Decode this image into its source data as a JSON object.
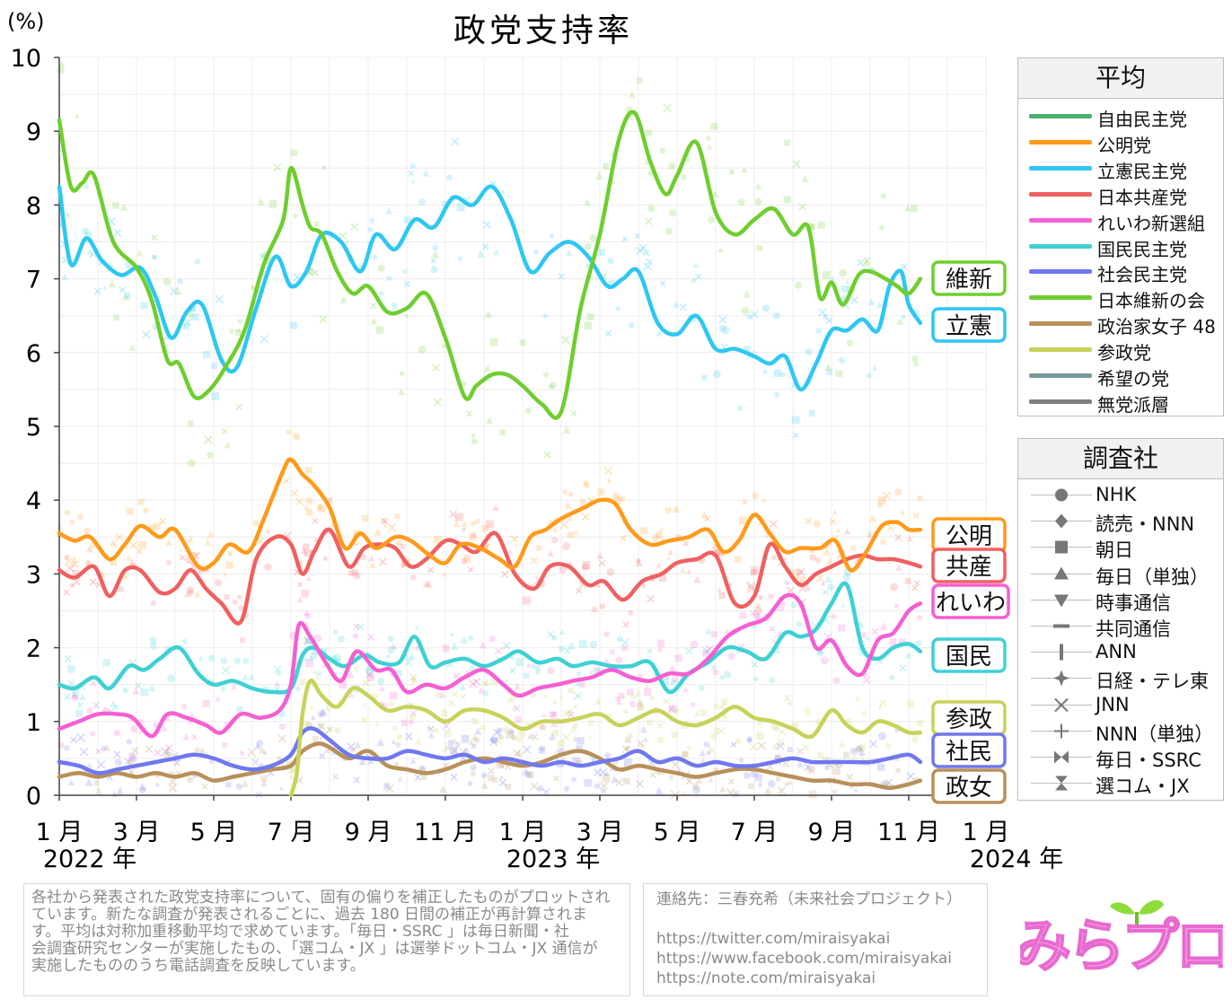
{
  "title": "政党支持率",
  "y_unit": "(%)",
  "colors": {
    "ldp": "#4caf6d",
    "komeito": "#ff9a1a",
    "cdp": "#2ec7f2",
    "jcp": "#f06060",
    "reiwa": "#f55fd2",
    "dpfp": "#3fd0d4",
    "sdp": "#6f78ef",
    "ishin": "#6fce2f",
    "seijika": "#b8905a",
    "sanseito": "#c8d25a",
    "kibou": "#7a9a9a",
    "mutouha": "#808080"
  },
  "chart_data": {
    "type": "line",
    "title": "政党支持率",
    "ylabel": "(%)",
    "ylim": [
      0,
      10
    ],
    "yticks": [
      "0",
      "1",
      "2",
      "3",
      "4",
      "5",
      "6",
      "7",
      "8",
      "9",
      "10"
    ],
    "xlim": [
      0,
      24
    ],
    "x_unit": "months since Jan 2022",
    "xticks": [
      {
        "x": 0,
        "label": "1 月"
      },
      {
        "x": 2,
        "label": "3 月"
      },
      {
        "x": 4,
        "label": "5 月"
      },
      {
        "x": 6,
        "label": "7 月"
      },
      {
        "x": 8,
        "label": "9 月"
      },
      {
        "x": 10,
        "label": "11 月"
      },
      {
        "x": 12,
        "label": "1 月"
      },
      {
        "x": 14,
        "label": "3 月"
      },
      {
        "x": 16,
        "label": "5 月"
      },
      {
        "x": 18,
        "label": "7 月"
      },
      {
        "x": 20,
        "label": "9 月"
      },
      {
        "x": 22,
        "label": "11 月"
      },
      {
        "x": 24,
        "label": "1 月"
      }
    ],
    "year_labels": [
      {
        "x": 0,
        "label": "2022 年"
      },
      {
        "x": 12,
        "label": "2023 年"
      },
      {
        "x": 24,
        "label": "2024 年"
      }
    ],
    "grid": true,
    "series": [
      {
        "name": "日本維新の会",
        "label": "維新",
        "color": "#6fce2f",
        "x": [
          0,
          0.3,
          0.6,
          0.9,
          1.4,
          2,
          2.4,
          2.8,
          3.1,
          3.5,
          3.9,
          4.3,
          4.8,
          5.3,
          5.8,
          6,
          6.3,
          6.5,
          6.8,
          7.2,
          7.6,
          8,
          8.5,
          9,
          9.5,
          10,
          10.5,
          10.8,
          11.2,
          11.6,
          12,
          12.5,
          13,
          13.5,
          14,
          14.5,
          14.9,
          15.3,
          15.7,
          16,
          16.5,
          17,
          17.5,
          18,
          18.5,
          19,
          19.4,
          19.7,
          20,
          20.3,
          20.7,
          21,
          21.4,
          21.7,
          22,
          22.3
        ],
        "y": [
          9.15,
          8.25,
          8.3,
          8.4,
          7.5,
          7.15,
          6.7,
          5.9,
          5.85,
          5.4,
          5.5,
          5.8,
          6.3,
          7.2,
          7.8,
          8.5,
          8.0,
          7.7,
          7.6,
          7.1,
          6.8,
          6.9,
          6.55,
          6.6,
          6.8,
          6.2,
          5.4,
          5.55,
          5.7,
          5.7,
          5.55,
          5.3,
          5.2,
          6.6,
          7.6,
          8.9,
          9.25,
          8.6,
          8.15,
          8.4,
          8.85,
          7.9,
          7.6,
          7.8,
          7.95,
          7.6,
          7.7,
          6.75,
          6.95,
          6.65,
          7.05,
          7.1,
          7.0,
          6.9,
          6.8,
          7.0
        ]
      },
      {
        "name": "立憲民主党",
        "label": "立憲",
        "color": "#2ec7f2",
        "x": [
          0,
          0.3,
          0.7,
          1.1,
          1.6,
          2.1,
          2.5,
          2.9,
          3.3,
          3.7,
          4.2,
          4.6,
          5.1,
          5.6,
          6,
          6.4,
          6.8,
          7.3,
          7.8,
          8.2,
          8.7,
          9.2,
          9.7,
          10.2,
          10.7,
          11.2,
          11.7,
          12.2,
          12.7,
          13.2,
          13.7,
          14.2,
          14.6,
          15,
          15.5,
          16,
          16.5,
          17,
          17.5,
          18,
          18.4,
          18.8,
          19.2,
          19.6,
          20,
          20.4,
          20.8,
          21.2,
          21.5,
          21.8,
          22,
          22.3
        ],
        "y": [
          8.25,
          7.2,
          7.55,
          7.25,
          7.05,
          7.15,
          6.75,
          6.2,
          6.55,
          6.65,
          5.9,
          5.8,
          6.6,
          7.3,
          6.9,
          7.1,
          7.6,
          7.5,
          7.1,
          7.6,
          7.4,
          7.8,
          7.7,
          8.1,
          8.0,
          8.25,
          7.8,
          7.1,
          7.35,
          7.5,
          7.3,
          6.9,
          7.0,
          7.1,
          6.4,
          6.25,
          6.5,
          6.05,
          6.05,
          5.95,
          5.85,
          5.95,
          5.5,
          5.85,
          6.3,
          6.3,
          6.45,
          6.3,
          6.9,
          7.1,
          6.65,
          6.4
        ]
      },
      {
        "name": "公明党",
        "label": "公明",
        "color": "#ff9a1a",
        "x": [
          0,
          0.4,
          0.8,
          1.3,
          1.7,
          2.1,
          2.6,
          3,
          3.6,
          4,
          4.4,
          4.9,
          5.3,
          5.8,
          6,
          6.3,
          6.6,
          7,
          7.4,
          7.8,
          8.2,
          8.7,
          9.1,
          9.6,
          10,
          10.4,
          10.9,
          11.4,
          11.8,
          12.2,
          12.6,
          13,
          13.6,
          14,
          14.4,
          14.8,
          15.3,
          15.8,
          16.3,
          16.8,
          17.2,
          17.6,
          18,
          18.4,
          18.8,
          19.2,
          19.7,
          20.1,
          20.5,
          20.9,
          21.3,
          21.7,
          22,
          22.3
        ],
        "y": [
          3.55,
          3.45,
          3.5,
          3.2,
          3.4,
          3.65,
          3.5,
          3.6,
          3.1,
          3.15,
          3.4,
          3.3,
          3.75,
          4.4,
          4.55,
          4.35,
          4.2,
          3.9,
          3.35,
          3.55,
          3.35,
          3.5,
          3.45,
          3.25,
          3.15,
          3.4,
          3.35,
          3.2,
          3.1,
          3.5,
          3.6,
          3.75,
          3.9,
          4.0,
          3.95,
          3.6,
          3.4,
          3.45,
          3.5,
          3.6,
          3.3,
          3.45,
          3.8,
          3.55,
          3.3,
          3.35,
          3.35,
          3.45,
          3.05,
          3.3,
          3.65,
          3.7,
          3.6,
          3.6
        ]
      },
      {
        "name": "日本共産党",
        "label": "共産",
        "color": "#f06060",
        "x": [
          0,
          0.4,
          0.9,
          1.3,
          1.7,
          2.1,
          2.6,
          3,
          3.4,
          3.8,
          4.2,
          4.7,
          5.1,
          5.6,
          6,
          6.3,
          6.6,
          7,
          7.5,
          7.9,
          8.3,
          8.7,
          9.1,
          9.5,
          10,
          10.4,
          10.8,
          11.3,
          11.8,
          12.3,
          12.7,
          13.2,
          13.7,
          14.1,
          14.6,
          15.1,
          15.6,
          16,
          16.5,
          17,
          17.5,
          18,
          18.4,
          18.8,
          19.2,
          19.6,
          20,
          20.4,
          20.8,
          21.2,
          21.6,
          22,
          22.3
        ],
        "y": [
          3.05,
          2.95,
          3.1,
          2.7,
          3.05,
          3.05,
          2.75,
          2.8,
          3.05,
          2.8,
          2.6,
          2.35,
          3.2,
          3.5,
          3.4,
          3.0,
          3.3,
          3.6,
          3.1,
          3.35,
          3.4,
          3.35,
          3.1,
          3.2,
          3.45,
          3.4,
          3.3,
          3.55,
          3.0,
          2.8,
          3.1,
          3.1,
          2.85,
          2.9,
          2.65,
          2.9,
          3.0,
          3.15,
          3.2,
          3.25,
          2.6,
          2.7,
          3.4,
          3.1,
          2.85,
          3.0,
          3.1,
          3.2,
          3.25,
          3.2,
          3.2,
          3.15,
          3.1
        ]
      },
      {
        "name": "れいわ新選組",
        "label": "れいわ",
        "color": "#f55fd2",
        "x": [
          0,
          0.5,
          1,
          1.5,
          1.9,
          2.4,
          2.8,
          3.3,
          3.8,
          4.2,
          4.7,
          5.2,
          5.7,
          6,
          6.2,
          6.5,
          6.9,
          7.3,
          7.7,
          8.2,
          8.6,
          9,
          9.5,
          10,
          10.5,
          11,
          11.5,
          11.9,
          12.4,
          12.9,
          13.3,
          13.8,
          14.3,
          14.8,
          15.3,
          15.8,
          16.3,
          16.8,
          17.3,
          17.8,
          18.3,
          18.8,
          19.2,
          19.6,
          20,
          20.4,
          20.8,
          21.2,
          21.6,
          22,
          22.3
        ],
        "y": [
          0.9,
          1.0,
          1.1,
          1.1,
          1.05,
          0.8,
          1.1,
          1.05,
          0.95,
          0.85,
          1.1,
          1.05,
          1.15,
          1.5,
          2.3,
          2.15,
          1.8,
          1.55,
          1.95,
          1.7,
          1.7,
          1.4,
          1.5,
          1.45,
          1.6,
          1.7,
          1.5,
          1.35,
          1.45,
          1.5,
          1.55,
          1.6,
          1.7,
          1.6,
          1.55,
          1.65,
          1.65,
          1.85,
          2.15,
          2.3,
          2.4,
          2.7,
          2.6,
          2.0,
          2.1,
          1.75,
          1.65,
          2.1,
          2.2,
          2.5,
          2.6
        ]
      },
      {
        "name": "国民民主党",
        "label": "国民",
        "color": "#3fd0d4",
        "x": [
          0,
          0.4,
          0.9,
          1.3,
          1.8,
          2.2,
          2.6,
          3.1,
          3.6,
          4,
          4.5,
          5,
          5.5,
          6,
          6.3,
          6.6,
          7,
          7.4,
          7.9,
          8.3,
          8.8,
          9.2,
          9.6,
          10,
          10.5,
          11,
          11.5,
          11.9,
          12.4,
          12.9,
          13.3,
          13.8,
          14.3,
          14.8,
          15.3,
          15.8,
          16.3,
          16.8,
          17.3,
          17.8,
          18.3,
          18.8,
          19.2,
          19.6,
          20,
          20.4,
          20.8,
          21.2,
          21.6,
          22,
          22.3
        ],
        "y": [
          1.5,
          1.45,
          1.6,
          1.45,
          1.75,
          1.7,
          1.85,
          2.0,
          1.65,
          1.5,
          1.55,
          1.45,
          1.4,
          1.45,
          1.9,
          2.0,
          1.85,
          1.75,
          1.9,
          1.8,
          1.8,
          2.15,
          1.75,
          1.8,
          1.85,
          1.75,
          1.85,
          1.95,
          1.8,
          1.85,
          1.75,
          1.8,
          1.75,
          1.75,
          1.8,
          1.4,
          1.65,
          1.8,
          2.0,
          1.95,
          1.85,
          2.2,
          2.15,
          2.25,
          2.6,
          2.85,
          2.0,
          1.85,
          2.0,
          2.05,
          1.95
        ]
      },
      {
        "name": "参政党",
        "label": "参政",
        "color": "#c8d25a",
        "x": [
          6,
          6.15,
          6.3,
          6.5,
          6.8,
          7.2,
          7.6,
          8,
          8.5,
          9,
          9.5,
          10,
          10.5,
          11,
          11.5,
          12,
          12.5,
          13,
          13.5,
          14,
          14.5,
          15,
          15.5,
          16,
          16.5,
          17,
          17.5,
          18,
          18.5,
          19,
          19.5,
          20,
          20.4,
          20.8,
          21.2,
          21.6,
          22,
          22.3
        ],
        "y": [
          0,
          0.3,
          1.1,
          1.55,
          1.35,
          1.2,
          1.45,
          1.35,
          1.15,
          1.2,
          1.15,
          1.0,
          1.15,
          1.15,
          1.05,
          0.9,
          1.0,
          1.0,
          1.05,
          1.1,
          0.95,
          1.05,
          1.15,
          1.0,
          0.95,
          1.05,
          1.2,
          1.05,
          1.0,
          0.9,
          0.8,
          1.15,
          0.95,
          0.85,
          1.0,
          0.95,
          0.85,
          0.85
        ]
      },
      {
        "name": "社会民主党",
        "label": "社民",
        "color": "#6f78ef",
        "x": [
          0,
          0.5,
          1,
          1.5,
          2,
          2.5,
          3,
          3.5,
          4,
          4.5,
          5,
          5.5,
          6,
          6.3,
          6.6,
          7,
          7.5,
          8,
          8.5,
          9,
          9.5,
          10,
          10.5,
          11,
          11.5,
          12,
          12.5,
          13,
          13.5,
          14,
          14.5,
          15,
          15.5,
          16,
          16.5,
          17,
          17.5,
          18,
          18.5,
          19,
          19.5,
          20,
          20.5,
          21,
          21.5,
          22,
          22.3
        ],
        "y": [
          0.45,
          0.4,
          0.3,
          0.35,
          0.4,
          0.45,
          0.5,
          0.55,
          0.5,
          0.4,
          0.35,
          0.4,
          0.55,
          0.85,
          0.9,
          0.75,
          0.55,
          0.5,
          0.5,
          0.6,
          0.55,
          0.5,
          0.55,
          0.45,
          0.5,
          0.45,
          0.4,
          0.45,
          0.4,
          0.45,
          0.5,
          0.6,
          0.45,
          0.5,
          0.4,
          0.45,
          0.4,
          0.4,
          0.45,
          0.5,
          0.45,
          0.45,
          0.45,
          0.45,
          0.5,
          0.55,
          0.45
        ]
      },
      {
        "name": "政治家女子 48",
        "label": "政女",
        "color": "#b8905a",
        "x": [
          0,
          0.5,
          1,
          1.5,
          2,
          2.5,
          3,
          3.5,
          4,
          4.5,
          5,
          5.5,
          6,
          6.3,
          6.7,
          7,
          7.5,
          8,
          8.5,
          9,
          9.5,
          10,
          10.5,
          11,
          11.5,
          12,
          12.5,
          13,
          13.5,
          14,
          14.5,
          15,
          15.5,
          16,
          16.5,
          17,
          17.5,
          18,
          18.5,
          19,
          19.5,
          20,
          20.5,
          21,
          21.5,
          22,
          22.3
        ],
        "y": [
          0.25,
          0.3,
          0.25,
          0.3,
          0.25,
          0.3,
          0.25,
          0.3,
          0.2,
          0.25,
          0.3,
          0.35,
          0.4,
          0.6,
          0.7,
          0.65,
          0.5,
          0.6,
          0.4,
          0.35,
          0.3,
          0.35,
          0.45,
          0.5,
          0.45,
          0.4,
          0.45,
          0.55,
          0.6,
          0.5,
          0.35,
          0.4,
          0.35,
          0.3,
          0.25,
          0.3,
          0.35,
          0.35,
          0.3,
          0.25,
          0.2,
          0.2,
          0.15,
          0.15,
          0.1,
          0.15,
          0.2
        ]
      }
    ],
    "legend_avg": {
      "title": "平均",
      "entries": [
        {
          "label": "自由民主党",
          "color": "#4caf6d"
        },
        {
          "label": "公明党",
          "color": "#ff9a1a"
        },
        {
          "label": "立憲民主党",
          "color": "#2ec7f2"
        },
        {
          "label": "日本共産党",
          "color": "#f06060"
        },
        {
          "label": "れいわ新選組",
          "color": "#f55fd2"
        },
        {
          "label": "国民民主党",
          "color": "#3fd0d4"
        },
        {
          "label": "社会民主党",
          "color": "#6f78ef"
        },
        {
          "label": "日本維新の会",
          "color": "#6fce2f"
        },
        {
          "label": "政治家女子 48",
          "color": "#b8905a"
        },
        {
          "label": "参政党",
          "color": "#c8d25a"
        },
        {
          "label": "希望の党",
          "color": "#7a9a9a"
        },
        {
          "label": "無党派層",
          "color": "#808080"
        }
      ]
    },
    "legend_pollster": {
      "title": "調査社",
      "entries": [
        {
          "label": "NHK",
          "symbol": "circle"
        },
        {
          "label": "読売・NNN",
          "symbol": "diamond"
        },
        {
          "label": "朝日",
          "symbol": "square"
        },
        {
          "label": "毎日（単独）",
          "symbol": "triangle-up"
        },
        {
          "label": "時事通信",
          "symbol": "triangle-down"
        },
        {
          "label": "共同通信",
          "symbol": "dash"
        },
        {
          "label": "ANN",
          "symbol": "bar"
        },
        {
          "label": "日経・テレ東",
          "symbol": "star4"
        },
        {
          "label": "JNN",
          "symbol": "x"
        },
        {
          "label": "NNN（単独）",
          "symbol": "plus"
        },
        {
          "label": "毎日・SSRC",
          "symbol": "bowtie"
        },
        {
          "label": "選コム・JX",
          "symbol": "hourglass"
        }
      ]
    }
  },
  "notes": {
    "method": [
      "各社から発表された政党支持率について、固有の偏りを補正したものがプロットされ",
      "ています。新たな調査が発表されるごとに、過去 180 日間の補正が再計算されま",
      "す。平均は対称加重移動平均で求めています。「毎日・SSRC 」は毎日新聞・社",
      "会調査研究センターが実施したもの、「選コム・JX 」は選挙ドットコム・JX 通信が",
      "実施したもののうち電話調査を反映しています。"
    ],
    "contact": [
      "連絡先：三春充希（未来社会プロジェクト）",
      "",
      "https://twitter.com/miraisyakai",
      "https://www.facebook.com/miraisyakai",
      "https://note.com/miraisyakai"
    ]
  },
  "logo": {
    "text": "みらプロ"
  }
}
